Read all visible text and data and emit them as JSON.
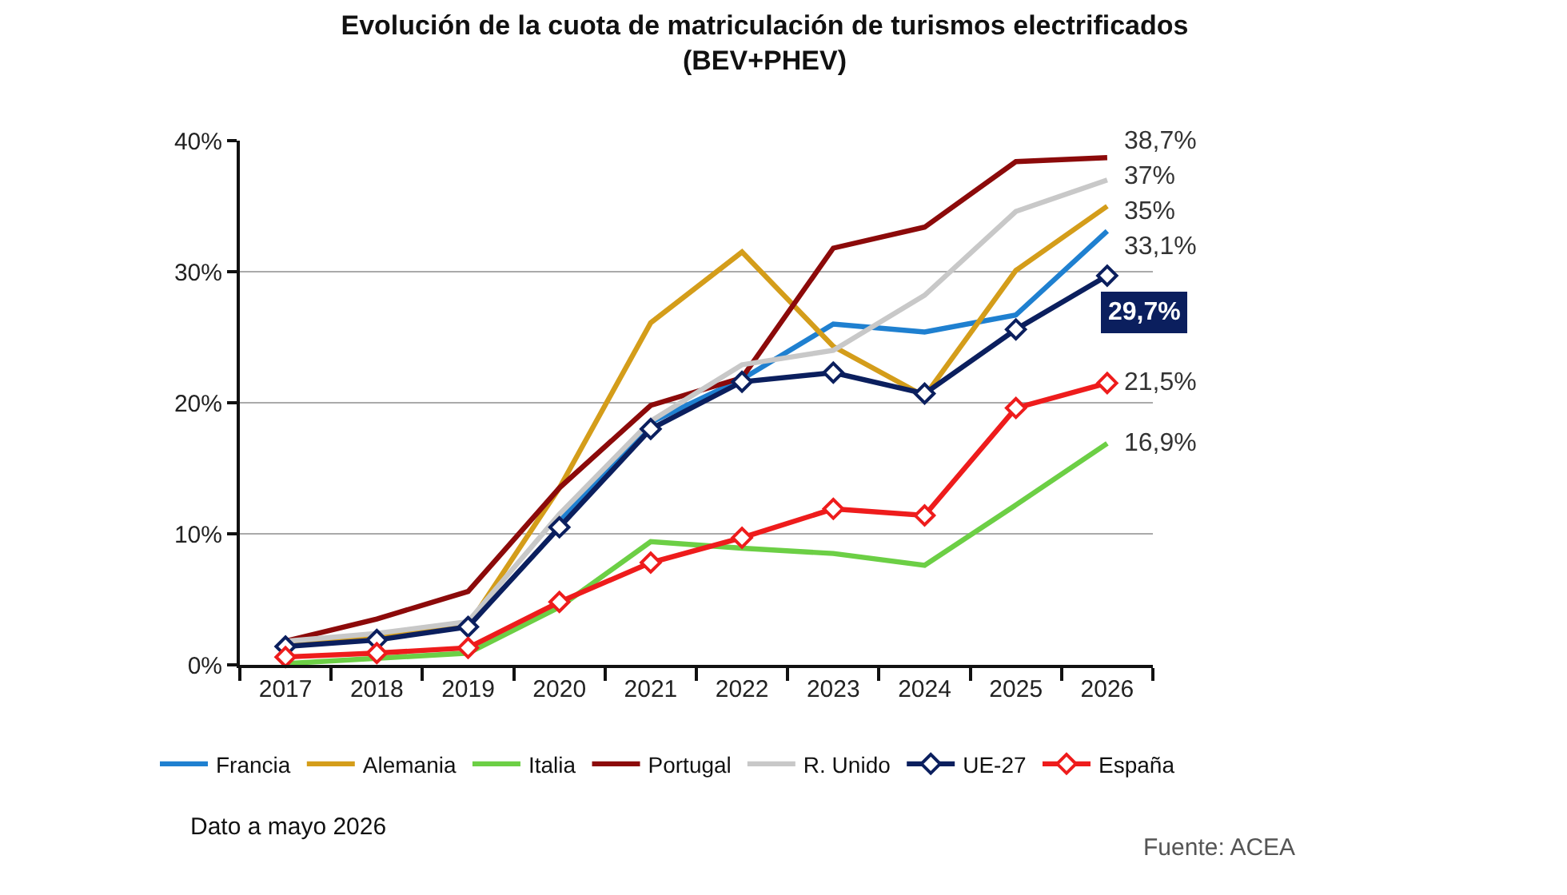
{
  "chart_data": {
    "type": "line",
    "title": "Evolución de la cuota de matriculación de turismos electrificados\n(BEV+PHEV)",
    "categories": [
      "2017",
      "2018",
      "2019",
      "2020",
      "2021",
      "2022",
      "2023",
      "2024",
      "2025",
      "2026"
    ],
    "ylim": [
      0,
      40
    ],
    "yticks": [
      {
        "value": 0,
        "label": "0%"
      },
      {
        "value": 10,
        "label": "10%"
      },
      {
        "value": 20,
        "label": "20%"
      },
      {
        "value": 30,
        "label": "30%"
      },
      {
        "value": 40,
        "label": "40%"
      }
    ],
    "grid": "y",
    "legend": "bottom",
    "marker": "none",
    "line_style": "solid",
    "series": [
      {
        "name": "Francia",
        "color": "#1f80d0",
        "values": [
          null,
          null,
          null,
          11.0,
          18.5,
          21.8,
          26.0,
          25.4,
          26.7,
          33.1
        ],
        "value_labels": [
          null,
          null,
          null,
          null,
          null,
          null,
          null,
          null,
          null,
          "33,1%"
        ]
      },
      {
        "name": "Alemania",
        "color": "#d49d1a",
        "values": [
          1.6,
          2.2,
          3.0,
          13.5,
          26.1,
          31.5,
          24.3,
          20.5,
          30.1,
          35.0
        ],
        "value_labels": [
          null,
          null,
          null,
          null,
          null,
          null,
          null,
          null,
          null,
          "35%"
        ]
      },
      {
        "name": "Italia",
        "color": "#6ccf45",
        "values": [
          0.1,
          0.5,
          0.9,
          4.4,
          9.4,
          8.9,
          8.5,
          7.6,
          12.2,
          16.9
        ],
        "value_labels": [
          null,
          null,
          null,
          null,
          null,
          null,
          null,
          null,
          null,
          "16,9%"
        ]
      },
      {
        "name": "Portugal",
        "color": "#8c0a0a",
        "values": [
          1.8,
          3.5,
          5.6,
          13.5,
          19.8,
          21.9,
          31.8,
          33.4,
          38.4,
          38.7
        ],
        "value_labels": [
          null,
          null,
          null,
          null,
          null,
          null,
          null,
          null,
          null,
          "38,7%"
        ]
      },
      {
        "name": "R. Unido",
        "color": "#c8c8c8",
        "values": [
          1.8,
          2.4,
          3.3,
          11.5,
          18.6,
          22.9,
          24.0,
          28.2,
          34.6,
          37.0
        ],
        "value_labels": [
          null,
          null,
          null,
          null,
          null,
          null,
          null,
          null,
          null,
          "37%"
        ]
      },
      {
        "name": "UE-27",
        "color": "#0b1f5e",
        "marker": "diamond",
        "values": [
          1.4,
          1.9,
          2.9,
          10.5,
          18.0,
          21.6,
          22.3,
          20.7,
          25.6,
          29.7
        ]
      },
      {
        "name": "España",
        "color": "#ee1c1c",
        "marker": "diamond",
        "values": [
          0.6,
          0.9,
          1.3,
          4.8,
          7.8,
          9.7,
          11.9,
          11.4,
          19.6,
          21.5
        ],
        "value_labels": [
          null,
          null,
          null,
          null,
          null,
          null,
          null,
          null,
          null,
          "21,5%"
        ]
      }
    ],
    "annotations": [
      {
        "text": "29,7%",
        "x": "2026",
        "y": 29.7
      },
      "Dato a mayo 2026",
      "Fuente: ACEA"
    ]
  }
}
